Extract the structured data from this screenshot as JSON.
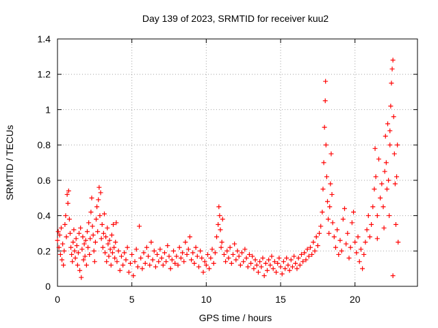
{
  "chart_data": {
    "type": "scatter",
    "title": "Day 139 of 2023, SRMTID for receiver kuu2",
    "xlabel": "GPS time / hours",
    "ylabel": "SRMTID / TECUs",
    "xlim": [
      0,
      24.2
    ],
    "ylim": [
      0,
      1.4
    ],
    "grid": true,
    "marker": "+",
    "marker_color": "#ff0000",
    "x_ticks": [
      {
        "value": 0,
        "label": "0"
      },
      {
        "value": 5,
        "label": "5"
      },
      {
        "value": 10,
        "label": "10"
      },
      {
        "value": 15,
        "label": "15"
      },
      {
        "value": 20,
        "label": "20"
      }
    ],
    "y_ticks": [
      {
        "value": 0,
        "label": "0"
      },
      {
        "value": 0.2,
        "label": "0.2"
      },
      {
        "value": 0.4,
        "label": "0.4"
      },
      {
        "value": 0.6,
        "label": "0.6"
      },
      {
        "value": 0.8,
        "label": "0.8"
      },
      {
        "value": 1.0,
        "label": "1"
      },
      {
        "value": 1.2,
        "label": "1.2"
      },
      {
        "value": 1.4,
        "label": "1.4"
      }
    ],
    "series": [
      {
        "name": "SRMTID",
        "points": [
          [
            0.0,
            0.26
          ],
          [
            0.05,
            0.31
          ],
          [
            0.1,
            0.22
          ],
          [
            0.15,
            0.29
          ],
          [
            0.2,
            0.18
          ],
          [
            0.25,
            0.33
          ],
          [
            0.3,
            0.15
          ],
          [
            0.35,
            0.24
          ],
          [
            0.4,
            0.12
          ],
          [
            0.45,
            0.2
          ],
          [
            0.5,
            0.35
          ],
          [
            0.55,
            0.4
          ],
          [
            0.6,
            0.28
          ],
          [
            0.65,
            0.52
          ],
          [
            0.7,
            0.47
          ],
          [
            0.75,
            0.54
          ],
          [
            0.8,
            0.38
          ],
          [
            0.85,
            0.3
          ],
          [
            0.9,
            0.22
          ],
          [
            0.95,
            0.18
          ],
          [
            1.0,
            0.14
          ],
          [
            1.05,
            0.25
          ],
          [
            1.1,
            0.32
          ],
          [
            1.15,
            0.2
          ],
          [
            1.2,
            0.16
          ],
          [
            1.25,
            0.27
          ],
          [
            1.3,
            0.23
          ],
          [
            1.35,
            0.12
          ],
          [
            1.4,
            0.19
          ],
          [
            1.45,
            0.3
          ],
          [
            1.5,
            0.09
          ],
          [
            1.55,
            0.33
          ],
          [
            1.6,
            0.05
          ],
          [
            1.65,
            0.21
          ],
          [
            1.7,
            0.28
          ],
          [
            1.75,
            0.15
          ],
          [
            1.8,
            0.24
          ],
          [
            1.85,
            0.17
          ],
          [
            1.9,
            0.26
          ],
          [
            1.95,
            0.12
          ],
          [
            2.0,
            0.31
          ],
          [
            2.05,
            0.22
          ],
          [
            2.1,
            0.36
          ],
          [
            2.15,
            0.18
          ],
          [
            2.2,
            0.27
          ],
          [
            2.25,
            0.42
          ],
          [
            2.3,
            0.5
          ],
          [
            2.35,
            0.34
          ],
          [
            2.4,
            0.29
          ],
          [
            2.45,
            0.2
          ],
          [
            2.5,
            0.14
          ],
          [
            2.55,
            0.25
          ],
          [
            2.6,
            0.38
          ],
          [
            2.65,
            0.45
          ],
          [
            2.7,
            0.31
          ],
          [
            2.75,
            0.49
          ],
          [
            2.8,
            0.56
          ],
          [
            2.85,
            0.4
          ],
          [
            2.9,
            0.53
          ],
          [
            2.95,
            0.27
          ],
          [
            3.0,
            0.35
          ],
          [
            3.05,
            0.22
          ],
          [
            3.1,
            0.3
          ],
          [
            3.15,
            0.41
          ],
          [
            3.2,
            0.19
          ],
          [
            3.25,
            0.28
          ],
          [
            3.3,
            0.14
          ],
          [
            3.35,
            0.33
          ],
          [
            3.4,
            0.24
          ],
          [
            3.45,
            0.17
          ],
          [
            3.5,
            0.26
          ],
          [
            3.55,
            0.21
          ],
          [
            3.6,
            0.12
          ],
          [
            3.65,
            0.29
          ],
          [
            3.7,
            0.19
          ],
          [
            3.75,
            0.35
          ],
          [
            3.8,
            0.22
          ],
          [
            3.85,
            0.16
          ],
          [
            3.9,
            0.25
          ],
          [
            3.95,
            0.36
          ],
          [
            4.0,
            0.14
          ],
          [
            4.1,
            0.2
          ],
          [
            4.2,
            0.09
          ],
          [
            4.3,
            0.17
          ],
          [
            4.4,
            0.12
          ],
          [
            4.5,
            0.19
          ],
          [
            4.6,
            0.15
          ],
          [
            4.7,
            0.22
          ],
          [
            4.8,
            0.08
          ],
          [
            4.9,
            0.13
          ],
          [
            5.0,
            0.18
          ],
          [
            5.1,
            0.06
          ],
          [
            5.2,
            0.14
          ],
          [
            5.3,
            0.21
          ],
          [
            5.4,
            0.11
          ],
          [
            5.5,
            0.34
          ],
          [
            5.6,
            0.16
          ],
          [
            5.7,
            0.1
          ],
          [
            5.8,
            0.19
          ],
          [
            5.9,
            0.13
          ],
          [
            6.0,
            0.22
          ],
          [
            6.1,
            0.17
          ],
          [
            6.2,
            0.12
          ],
          [
            6.3,
            0.25
          ],
          [
            6.4,
            0.15
          ],
          [
            6.5,
            0.2
          ],
          [
            6.6,
            0.11
          ],
          [
            6.7,
            0.18
          ],
          [
            6.8,
            0.14
          ],
          [
            6.9,
            0.21
          ],
          [
            7.0,
            0.16
          ],
          [
            7.1,
            0.12
          ],
          [
            7.2,
            0.19
          ],
          [
            7.3,
            0.14
          ],
          [
            7.4,
            0.23
          ],
          [
            7.5,
            0.17
          ],
          [
            7.6,
            0.1
          ],
          [
            7.7,
            0.15
          ],
          [
            7.8,
            0.2
          ],
          [
            7.9,
            0.13
          ],
          [
            8.0,
            0.17
          ],
          [
            8.1,
            0.12
          ],
          [
            8.2,
            0.22
          ],
          [
            8.3,
            0.16
          ],
          [
            8.4,
            0.19
          ],
          [
            8.5,
            0.14
          ],
          [
            8.6,
            0.25
          ],
          [
            8.7,
            0.18
          ],
          [
            8.8,
            0.21
          ],
          [
            8.9,
            0.28
          ],
          [
            9.0,
            0.15
          ],
          [
            9.1,
            0.19
          ],
          [
            9.2,
            0.13
          ],
          [
            9.3,
            0.22
          ],
          [
            9.4,
            0.17
          ],
          [
            9.5,
            0.11
          ],
          [
            9.6,
            0.2
          ],
          [
            9.7,
            0.16
          ],
          [
            9.8,
            0.08
          ],
          [
            9.9,
            0.14
          ],
          [
            10.0,
            0.12
          ],
          [
            10.1,
            0.18
          ],
          [
            10.2,
            0.1
          ],
          [
            10.3,
            0.16
          ],
          [
            10.4,
            0.21
          ],
          [
            10.5,
            0.13
          ],
          [
            10.6,
            0.19
          ],
          [
            10.7,
            0.28
          ],
          [
            10.8,
            0.35
          ],
          [
            10.85,
            0.45
          ],
          [
            10.9,
            0.4
          ],
          [
            10.95,
            0.32
          ],
          [
            11.0,
            0.22
          ],
          [
            11.05,
            0.25
          ],
          [
            11.1,
            0.38
          ],
          [
            11.2,
            0.18
          ],
          [
            11.3,
            0.14
          ],
          [
            11.4,
            0.2
          ],
          [
            11.5,
            0.16
          ],
          [
            11.6,
            0.22
          ],
          [
            11.7,
            0.13
          ],
          [
            11.8,
            0.18
          ],
          [
            11.9,
            0.24
          ],
          [
            12.0,
            0.15
          ],
          [
            12.1,
            0.2
          ],
          [
            12.2,
            0.17
          ],
          [
            12.3,
            0.12
          ],
          [
            12.4,
            0.19
          ],
          [
            12.5,
            0.14
          ],
          [
            12.6,
            0.21
          ],
          [
            12.7,
            0.16
          ],
          [
            12.8,
            0.11
          ],
          [
            12.9,
            0.18
          ],
          [
            13.0,
            0.13
          ],
          [
            13.1,
            0.17
          ],
          [
            13.2,
            0.1
          ],
          [
            13.3,
            0.15
          ],
          [
            13.4,
            0.12
          ],
          [
            13.5,
            0.08
          ],
          [
            13.6,
            0.14
          ],
          [
            13.7,
            0.11
          ],
          [
            13.8,
            0.16
          ],
          [
            13.9,
            0.06
          ],
          [
            14.0,
            0.13
          ],
          [
            14.1,
            0.09
          ],
          [
            14.2,
            0.15
          ],
          [
            14.3,
            0.12
          ],
          [
            14.4,
            0.17
          ],
          [
            14.5,
            0.1
          ],
          [
            14.6,
            0.14
          ],
          [
            14.7,
            0.08
          ],
          [
            14.8,
            0.13
          ],
          [
            14.9,
            0.16
          ],
          [
            15.0,
            0.11
          ],
          [
            15.1,
            0.07
          ],
          [
            15.2,
            0.14
          ],
          [
            15.3,
            0.1
          ],
          [
            15.4,
            0.16
          ],
          [
            15.5,
            0.12
          ],
          [
            15.6,
            0.09
          ],
          [
            15.7,
            0.15
          ],
          [
            15.8,
            0.11
          ],
          [
            15.9,
            0.17
          ],
          [
            16.0,
            0.13
          ],
          [
            16.1,
            0.1
          ],
          [
            16.2,
            0.16
          ],
          [
            16.3,
            0.12
          ],
          [
            16.4,
            0.18
          ],
          [
            16.5,
            0.14
          ],
          [
            16.6,
            0.19
          ],
          [
            16.7,
            0.15
          ],
          [
            16.8,
            0.21
          ],
          [
            16.9,
            0.17
          ],
          [
            17.0,
            0.22
          ],
          [
            17.1,
            0.18
          ],
          [
            17.2,
            0.25
          ],
          [
            17.3,
            0.2
          ],
          [
            17.4,
            0.28
          ],
          [
            17.5,
            0.23
          ],
          [
            17.6,
            0.3
          ],
          [
            17.7,
            0.34
          ],
          [
            17.8,
            0.42
          ],
          [
            17.85,
            0.55
          ],
          [
            17.9,
            0.7
          ],
          [
            17.95,
            0.9
          ],
          [
            18.0,
            1.05
          ],
          [
            18.02,
            1.16
          ],
          [
            18.05,
            0.8
          ],
          [
            18.1,
            0.62
          ],
          [
            18.15,
            0.48
          ],
          [
            18.2,
            0.38
          ],
          [
            18.25,
            0.3
          ],
          [
            18.3,
            0.45
          ],
          [
            18.35,
            0.58
          ],
          [
            18.4,
            0.75
          ],
          [
            18.45,
            0.52
          ],
          [
            18.5,
            0.36
          ],
          [
            18.6,
            0.28
          ],
          [
            18.7,
            0.22
          ],
          [
            18.8,
            0.32
          ],
          [
            18.9,
            0.18
          ],
          [
            19.0,
            0.26
          ],
          [
            19.1,
            0.2
          ],
          [
            19.2,
            0.38
          ],
          [
            19.3,
            0.44
          ],
          [
            19.4,
            0.24
          ],
          [
            19.5,
            0.3
          ],
          [
            19.6,
            0.16
          ],
          [
            19.7,
            0.22
          ],
          [
            19.8,
            0.36
          ],
          [
            19.9,
            0.42
          ],
          [
            20.0,
            0.25
          ],
          [
            20.1,
            0.19
          ],
          [
            20.2,
            0.28
          ],
          [
            20.3,
            0.14
          ],
          [
            20.4,
            0.21
          ],
          [
            20.5,
            0.1
          ],
          [
            20.6,
            0.18
          ],
          [
            20.7,
            0.25
          ],
          [
            20.8,
            0.32
          ],
          [
            20.9,
            0.4
          ],
          [
            21.0,
            0.28
          ],
          [
            21.1,
            0.35
          ],
          [
            21.2,
            0.45
          ],
          [
            21.3,
            0.55
          ],
          [
            21.35,
            0.78
          ],
          [
            21.4,
            0.62
          ],
          [
            21.5,
            0.4
          ],
          [
            21.6,
            0.72
          ],
          [
            21.7,
            0.5
          ],
          [
            21.8,
            0.58
          ],
          [
            21.9,
            0.45
          ],
          [
            22.0,
            0.65
          ],
          [
            22.05,
            0.85
          ],
          [
            22.1,
            0.7
          ],
          [
            22.15,
            0.55
          ],
          [
            22.2,
            0.92
          ],
          [
            22.25,
            0.6
          ],
          [
            22.3,
            0.4
          ],
          [
            22.35,
            0.8
          ],
          [
            22.4,
            1.02
          ],
          [
            22.45,
            1.15
          ],
          [
            22.5,
            1.23
          ],
          [
            22.55,
            1.28
          ],
          [
            22.6,
            0.96
          ],
          [
            22.65,
            0.75
          ],
          [
            22.7,
            0.58
          ],
          [
            22.75,
            0.35
          ],
          [
            22.8,
            0.62
          ],
          [
            22.85,
            0.8
          ],
          [
            22.9,
            0.25
          ],
          [
            22.55,
            0.06
          ],
          [
            22.35,
            0.88
          ],
          [
            21.95,
            0.33
          ],
          [
            21.5,
            0.27
          ]
        ]
      }
    ]
  }
}
